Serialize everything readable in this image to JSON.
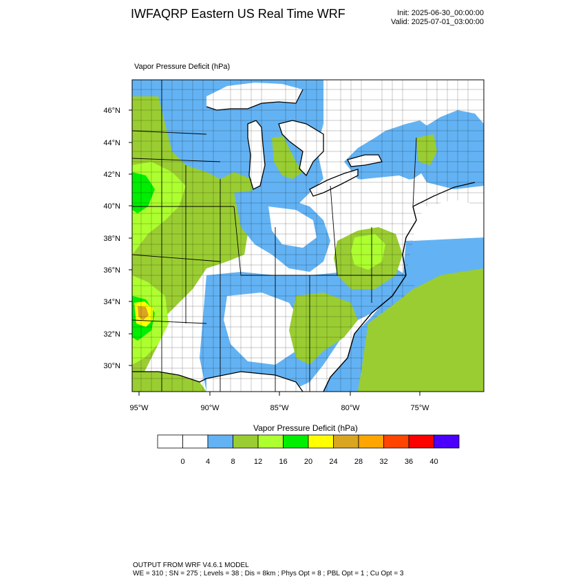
{
  "title": "IWFAQRP Eastern US Real Time WRF",
  "init_line": "Init: 2025-06-30_00:00:00",
  "valid_line": "Valid: 2025-07-01_03:00:00",
  "field_label": "Vapor Pressure Deficit   (hPa)",
  "lat_labels": [
    "46°N",
    "44°N",
    "42°N",
    "40°N",
    "38°N",
    "36°N",
    "34°N",
    "32°N",
    "30°N"
  ],
  "lon_labels": [
    "95°W",
    "90°W",
    "85°W",
    "80°W",
    "75°W"
  ],
  "colorbar": {
    "title": "Vapor Pressure Deficit  (hPa)",
    "levels": [
      "0",
      "4",
      "8",
      "12",
      "16",
      "20",
      "24",
      "28",
      "32",
      "36",
      "40"
    ],
    "colors": [
      "#ffffff",
      "#ffffff",
      "#63b3f4",
      "#9acd32",
      "#adff2f",
      "#00ee00",
      "#ffff00",
      "#daa520",
      "#ffa500",
      "#ff4500",
      "#ff0000",
      "#4b00ff"
    ]
  },
  "footer": {
    "line1": "OUTPUT FROM WRF V4.6.1 MODEL",
    "line2": "WE = 310 ; SN = 275 ; Levels = 38 ; Dis = 8km ; Phys Opt = 8 ; PBL Opt = 1 ; Cu Opt = 3"
  },
  "colors": {
    "water_dry": "#63b3f4",
    "moderate": "#9acd32",
    "high": "#adff2f",
    "very_high": "#00ee00",
    "extreme": "#ffff00",
    "extreme2": "#daa520"
  }
}
